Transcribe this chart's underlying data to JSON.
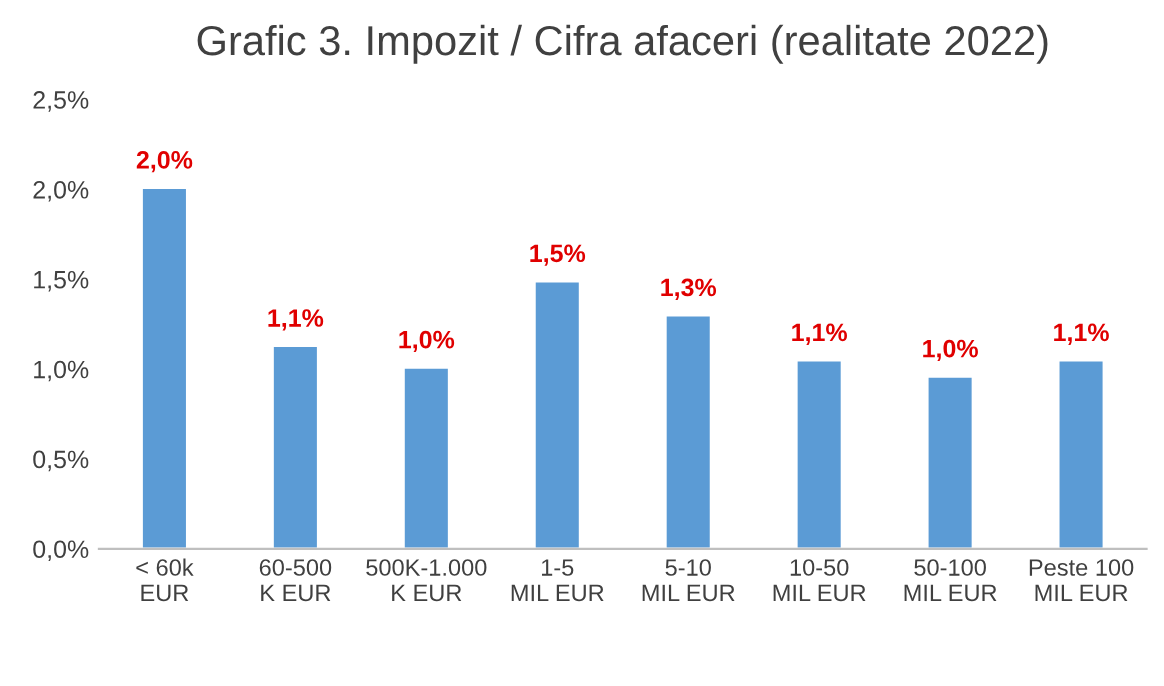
{
  "chart_data": {
    "type": "bar",
    "title": "Grafic 3. Impozit / Cifra afaceri (realitate 2022)",
    "categories": [
      "< 60k EUR",
      "60-500 K EUR",
      "500K-1.000 K EUR",
      "1-5 MIL EUR",
      "5-10 MIL EUR",
      "10-50 MIL EUR",
      "50-100 MIL EUR",
      "Peste 100 MIL EUR"
    ],
    "values": [
      2.01,
      1.13,
      1.01,
      1.49,
      1.3,
      1.05,
      0.96,
      1.05
    ],
    "value_labels": [
      "2,0%",
      "1,1%",
      "1,0%",
      "1,5%",
      "1,3%",
      "1,1%",
      "1,0%",
      "1,1%"
    ],
    "color": "#5b9bd5",
    "ylim": [
      0,
      2.5
    ],
    "yticks": [
      {
        "value": 0,
        "label": "0,0%"
      },
      {
        "value": 0.5,
        "label": "0,5%"
      },
      {
        "value": 1.0,
        "label": "1,0%"
      },
      {
        "value": 1.5,
        "label": "1,5%"
      },
      {
        "value": 2.0,
        "label": "2,0%"
      },
      {
        "value": 2.5,
        "label": "2,5%"
      }
    ],
    "grid": false,
    "legend": false
  }
}
